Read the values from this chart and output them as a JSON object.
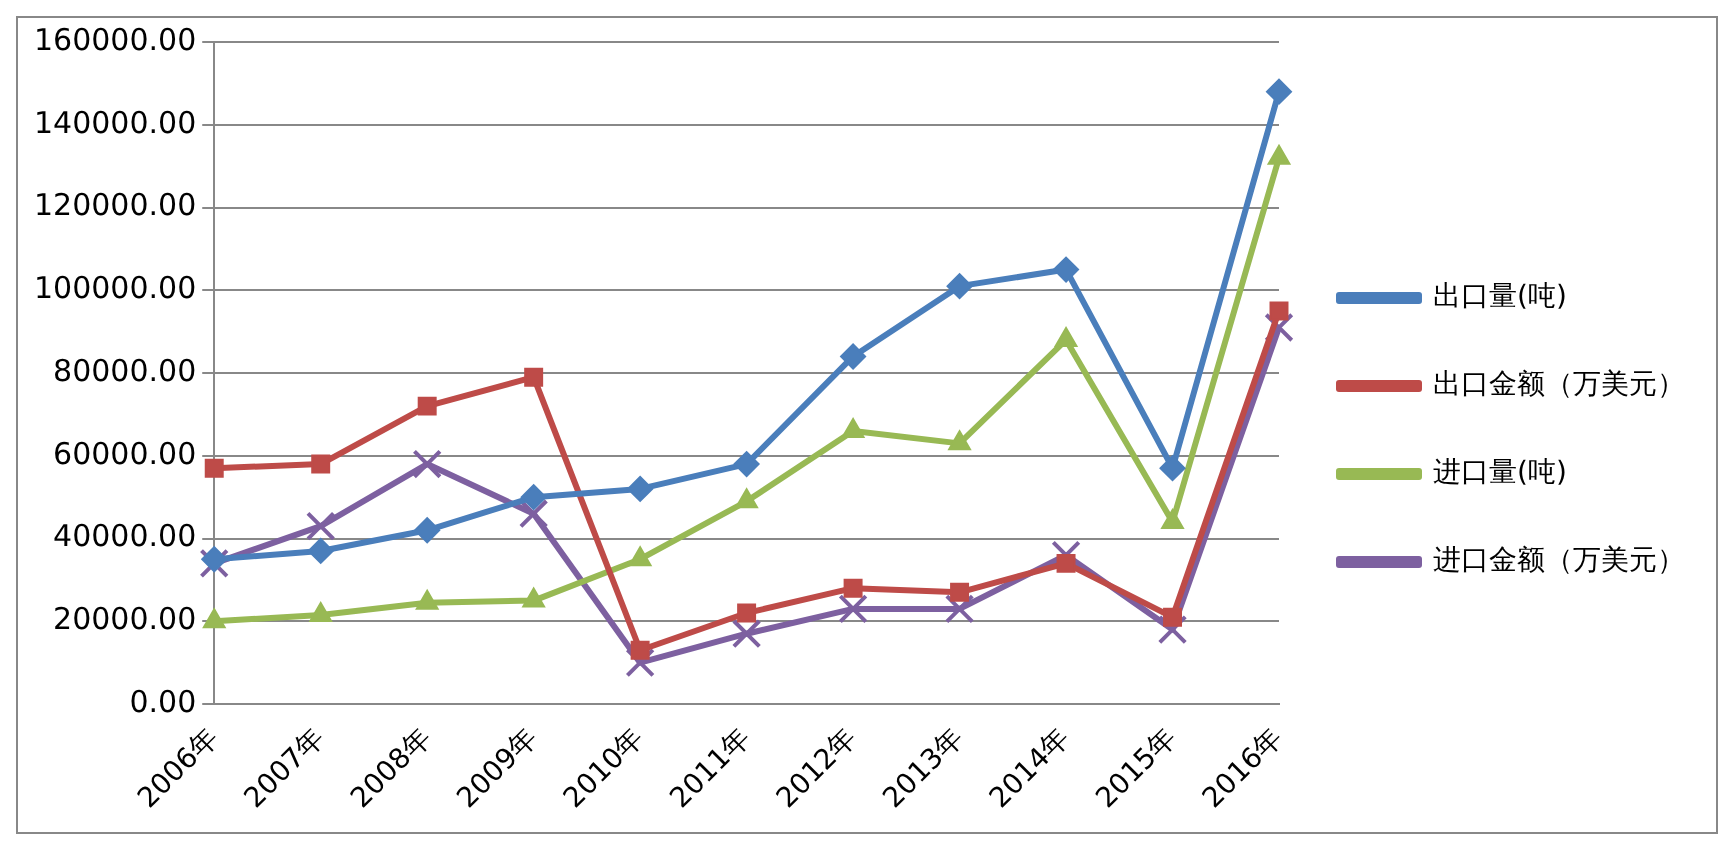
{
  "chart_data": {
    "type": "line",
    "categories": [
      "2006年",
      "2007年",
      "2008年",
      "2009年",
      "2010年",
      "2011年",
      "2012年",
      "2013年",
      "2014年",
      "2015年",
      "2016年"
    ],
    "series": [
      {
        "name": "出口量(吨)",
        "color": "#4a7ebb",
        "marker": "diamond",
        "values": [
          35000,
          37000,
          42000,
          50000,
          52000,
          58000,
          84000,
          101000,
          105000,
          57000,
          148000
        ]
      },
      {
        "name": "出口金额（万美元）",
        "color": "#be4b48",
        "marker": "square",
        "values": [
          57000,
          58000,
          72000,
          79000,
          13000,
          22000,
          28000,
          27000,
          34000,
          21000,
          95000
        ]
      },
      {
        "name": "进口量(吨)",
        "color": "#98b954",
        "marker": "triangle",
        "values": [
          20000,
          21500,
          24500,
          25000,
          35000,
          49000,
          66000,
          63000,
          88000,
          44000,
          132000
        ]
      },
      {
        "name": "进口金额（万美元）",
        "color": "#7d60a0",
        "marker": "cross",
        "values": [
          34000,
          43000,
          58000,
          46000,
          10000,
          17000,
          23000,
          23000,
          36000,
          18000,
          91000
        ]
      }
    ],
    "ylim": [
      0,
      160000
    ],
    "yticks": [
      {
        "value": 0,
        "label": "0.00"
      },
      {
        "value": 20000,
        "label": "20000.00"
      },
      {
        "value": 40000,
        "label": "40000.00"
      },
      {
        "value": 60000,
        "label": "60000.00"
      },
      {
        "value": 80000,
        "label": "80000.00"
      },
      {
        "value": 100000,
        "label": "100000.00"
      },
      {
        "value": 120000,
        "label": "120000.00"
      },
      {
        "value": 140000,
        "label": "140000.00"
      },
      {
        "value": 160000,
        "label": "160000.00"
      }
    ],
    "grid": "y",
    "legend": "right",
    "line_style": "solid"
  }
}
